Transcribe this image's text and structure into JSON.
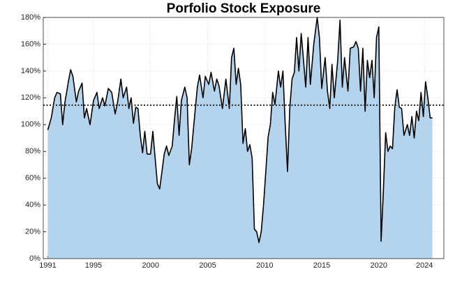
{
  "chart_data": {
    "type": "area",
    "title": "Porfolio Stock Exposure",
    "x": [
      1991.0,
      1991.3,
      1991.6,
      1991.8,
      1992.1,
      1992.3,
      1992.5,
      1992.8,
      1993.0,
      1993.2,
      1993.5,
      1993.7,
      1994.0,
      1994.2,
      1994.4,
      1994.7,
      1995.0,
      1995.3,
      1995.5,
      1995.8,
      1996.0,
      1996.3,
      1996.6,
      1996.9,
      1997.1,
      1997.4,
      1997.6,
      1997.9,
      1998.1,
      1998.3,
      1998.5,
      1998.7,
      1998.9,
      1999.1,
      1999.3,
      1999.5,
      1999.7,
      2000.0,
      2000.2,
      2000.4,
      2000.6,
      2000.8,
      2001.0,
      2001.2,
      2001.4,
      2001.6,
      2001.9,
      2002.1,
      2002.3,
      2002.5,
      2002.7,
      2003.0,
      2003.2,
      2003.4,
      2003.6,
      2003.9,
      2004.1,
      2004.3,
      2004.6,
      2004.8,
      2005.1,
      2005.3,
      2005.6,
      2005.8,
      2006.0,
      2006.3,
      2006.6,
      2006.9,
      2007.1,
      2007.3,
      2007.5,
      2007.7,
      2007.9,
      2008.1,
      2008.3,
      2008.5,
      2008.7,
      2008.9,
      2009.1,
      2009.3,
      2009.5,
      2009.7,
      2009.9,
      2010.1,
      2010.3,
      2010.5,
      2010.7,
      2010.9,
      2011.2,
      2011.4,
      2011.6,
      2011.8,
      2012.0,
      2012.2,
      2012.4,
      2012.6,
      2012.8,
      2013.0,
      2013.2,
      2013.4,
      2013.6,
      2013.8,
      2014.0,
      2014.3,
      2014.6,
      2014.8,
      2015.0,
      2015.3,
      2015.5,
      2015.7,
      2015.9,
      2016.1,
      2016.4,
      2016.6,
      2016.8,
      2017.0,
      2017.3,
      2017.5,
      2017.8,
      2018.0,
      2018.2,
      2018.4,
      2018.6,
      2018.8,
      2019.0,
      2019.2,
      2019.4,
      2019.6,
      2019.8,
      2020.0,
      2020.2,
      2020.4,
      2020.6,
      2020.8,
      2021.0,
      2021.2,
      2021.4,
      2021.6,
      2021.8,
      2022.0,
      2022.2,
      2022.5,
      2022.7,
      2022.9,
      2023.1,
      2023.3,
      2023.5,
      2023.7,
      2023.9,
      2024.1,
      2024.3,
      2024.5,
      2024.7
    ],
    "values": [
      96,
      105,
      120,
      124,
      123,
      100,
      117,
      132,
      141,
      136,
      117,
      125,
      131,
      105,
      112,
      100,
      118,
      124,
      112,
      120,
      114,
      127,
      124,
      108,
      116,
      134,
      120,
      128,
      112,
      120,
      101,
      113,
      112,
      92,
      79,
      95,
      78,
      78,
      95,
      75,
      56,
      52,
      65,
      78,
      84,
      77,
      84,
      104,
      121,
      92,
      118,
      128,
      120,
      70,
      82,
      110,
      128,
      137,
      120,
      136,
      130,
      139,
      125,
      134,
      129,
      112,
      134,
      112,
      150,
      157,
      130,
      142,
      130,
      86,
      97,
      80,
      85,
      75,
      22,
      20,
      12,
      20,
      40,
      65,
      91,
      100,
      124,
      115,
      140,
      128,
      140,
      100,
      65,
      112,
      134,
      139,
      165,
      140,
      168,
      148,
      128,
      165,
      130,
      160,
      180,
      165,
      127,
      150,
      125,
      112,
      145,
      120,
      148,
      178,
      128,
      150,
      125,
      157,
      158,
      162,
      157,
      125,
      157,
      110,
      148,
      135,
      148,
      120,
      165,
      173,
      13,
      50,
      94,
      80,
      84,
      82,
      113,
      126,
      113,
      112,
      92,
      100,
      92,
      106,
      90,
      110,
      103,
      124,
      106,
      132,
      120,
      105,
      105
    ],
    "line_color": "#000000",
    "fill_color": "#b3d4ec",
    "reference_line": 114.5,
    "xlim": [
      1990.6,
      2025.7
    ],
    "xticks": [
      1991,
      1995,
      2000,
      2005,
      2010,
      2015,
      2020,
      2024
    ],
    "ylim": [
      0,
      180
    ],
    "yticks": [
      {
        "value": 0,
        "label": "0%"
      },
      {
        "value": 20,
        "label": "20%"
      },
      {
        "value": 40,
        "label": "40%"
      },
      {
        "value": 60,
        "label": "60%"
      },
      {
        "value": 80,
        "label": "80%"
      },
      {
        "value": 100,
        "label": "100%"
      },
      {
        "value": 120,
        "label": "120%"
      },
      {
        "value": 140,
        "label": "140%"
      },
      {
        "value": 160,
        "label": "160%"
      },
      {
        "value": 180,
        "label": "180%"
      }
    ],
    "grid": true
  }
}
